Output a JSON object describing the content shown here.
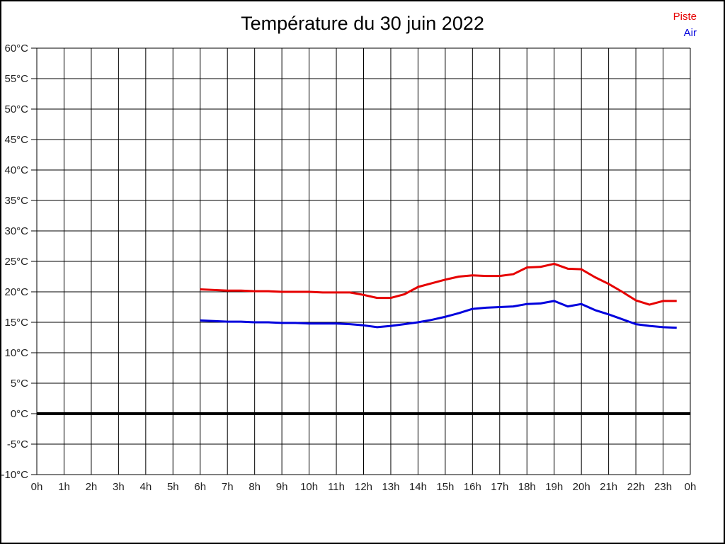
{
  "chart_data": {
    "type": "line",
    "title": "Température du 30 juin 2022",
    "xlabel": "",
    "ylabel": "",
    "xlim": [
      0,
      24
    ],
    "ylim": [
      -10,
      60
    ],
    "grid": true,
    "legend_position": "top-right",
    "zero_line_at": 0,
    "x_ticks": {
      "positions": [
        0,
        1,
        2,
        3,
        4,
        5,
        6,
        7,
        8,
        9,
        10,
        11,
        12,
        13,
        14,
        15,
        16,
        17,
        18,
        19,
        20,
        21,
        22,
        23,
        24
      ],
      "labels": [
        "0h",
        "1h",
        "2h",
        "3h",
        "4h",
        "5h",
        "6h",
        "7h",
        "8h",
        "9h",
        "10h",
        "11h",
        "12h",
        "13h",
        "14h",
        "15h",
        "16h",
        "17h",
        "18h",
        "19h",
        "20h",
        "21h",
        "22h",
        "23h",
        "0h"
      ]
    },
    "y_ticks": {
      "positions": [
        -10,
        -5,
        0,
        5,
        10,
        15,
        20,
        25,
        30,
        35,
        40,
        45,
        50,
        55,
        60
      ],
      "labels": [
        "-10°C",
        "-5°C",
        "0°C",
        "5°C",
        "10°C",
        "15°C",
        "20°C",
        "25°C",
        "30°C",
        "35°C",
        "40°C",
        "45°C",
        "50°C",
        "55°C",
        "60°C"
      ]
    },
    "x": [
      6,
      6.5,
      7,
      7.5,
      8,
      8.5,
      9,
      9.5,
      10,
      10.5,
      11,
      11.5,
      12,
      12.5,
      13,
      13.5,
      14,
      14.5,
      15,
      15.5,
      16,
      16.5,
      17,
      17.5,
      18,
      18.5,
      19,
      19.5,
      20,
      20.5,
      21,
      21.5,
      22,
      22.5,
      23,
      23.5
    ],
    "series": [
      {
        "name": "Piste",
        "color": "#e60000",
        "values": [
          20.4,
          20.3,
          20.2,
          20.2,
          20.1,
          20.1,
          20.0,
          20.0,
          20.0,
          19.9,
          19.9,
          19.9,
          19.5,
          19.0,
          19.0,
          19.6,
          20.8,
          21.4,
          22.0,
          22.5,
          22.7,
          22.6,
          22.6,
          22.9,
          24.0,
          24.1,
          24.6,
          23.8,
          23.7,
          22.4,
          21.3,
          20.0,
          18.6,
          17.9,
          18.5,
          18.5
        ]
      },
      {
        "name": "Air",
        "color": "#0000dd",
        "values": [
          15.3,
          15.2,
          15.1,
          15.1,
          15.0,
          15.0,
          14.9,
          14.9,
          14.8,
          14.8,
          14.8,
          14.7,
          14.5,
          14.2,
          14.4,
          14.7,
          15.0,
          15.4,
          15.9,
          16.5,
          17.2,
          17.4,
          17.5,
          17.6,
          18.0,
          18.1,
          18.5,
          17.6,
          18.0,
          17.0,
          16.3,
          15.5,
          14.7,
          14.4,
          14.2,
          14.1
        ]
      }
    ]
  },
  "style": {
    "grid_color": "#000000",
    "label_color": "#222222",
    "zero_line_width": 4,
    "series_line_width": 3
  }
}
